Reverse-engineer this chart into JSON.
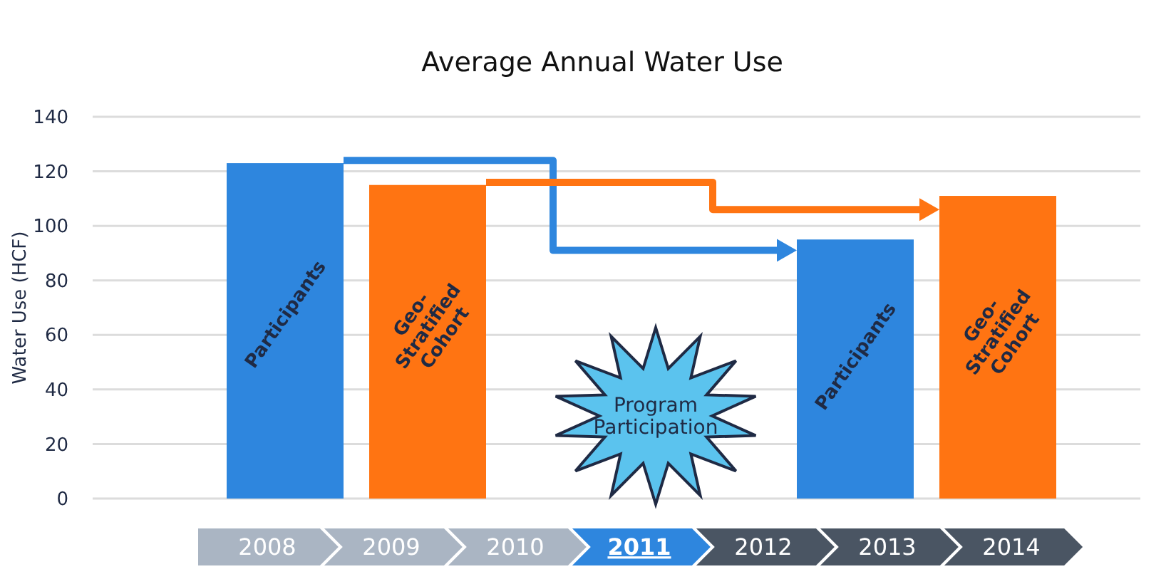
{
  "chart_data": {
    "type": "bar",
    "title": "Average Annual Water Use",
    "ylabel": "Water Use (HCF)",
    "categories": [
      "Participants",
      "Geo-Stratified Cohort",
      null,
      null,
      "Participants",
      "Geo-Stratified Cohort"
    ],
    "values": [
      123,
      115,
      null,
      null,
      95,
      111
    ],
    "colors": [
      "#2e86de",
      "#ff7412",
      null,
      null,
      "#2e86de",
      "#ff7412"
    ],
    "ylim": [
      0,
      140
    ],
    "yticks": [
      0,
      20,
      40,
      60,
      80,
      100,
      120,
      140
    ],
    "grid": "y",
    "annotations": [
      "Program Participation",
      "2008",
      "2009",
      "2010",
      "2011",
      "2012",
      "2013",
      "2014"
    ]
  }
}
